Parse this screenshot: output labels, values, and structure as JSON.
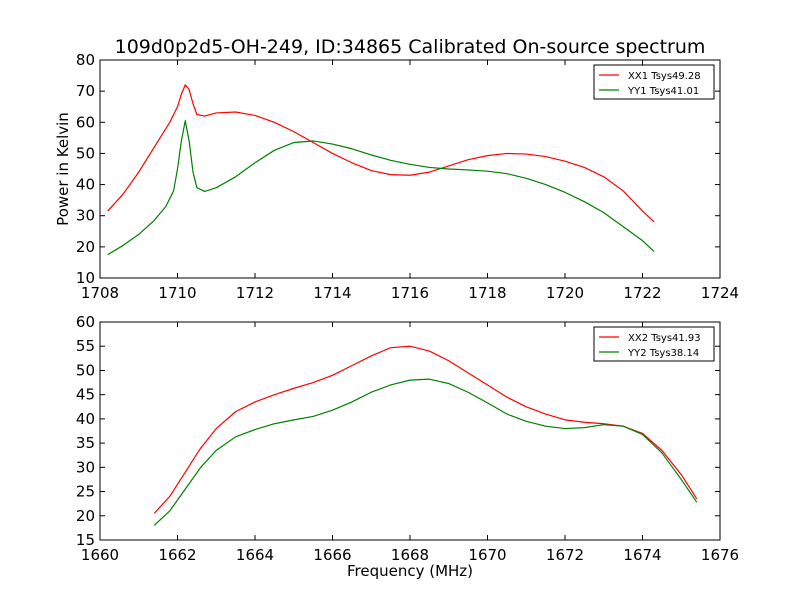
{
  "title": "109d0p2d5-OH-249, ID:34865 Calibrated On-source spectrum",
  "chart_data": [
    {
      "type": "line",
      "ylabel": "Power in Kelvin",
      "xlabel": "",
      "xlim": [
        1708,
        1724
      ],
      "ylim": [
        10,
        80
      ],
      "xticks": [
        1708,
        1710,
        1712,
        1714,
        1716,
        1718,
        1720,
        1722,
        1724
      ],
      "yticks": [
        10,
        20,
        30,
        40,
        50,
        60,
        70,
        80
      ],
      "legend_position": "top-right",
      "series": [
        {
          "name": "XX1 Tsys49.28",
          "color": "#ff0000",
          "points": [
            [
              1708.2,
              31.5
            ],
            [
              1708.6,
              37
            ],
            [
              1709.0,
              44
            ],
            [
              1709.4,
              52
            ],
            [
              1709.8,
              60
            ],
            [
              1710.0,
              65
            ],
            [
              1710.1,
              69
            ],
            [
              1710.2,
              72
            ],
            [
              1710.3,
              70.5
            ],
            [
              1710.4,
              66
            ],
            [
              1710.5,
              62.5
            ],
            [
              1710.7,
              62
            ],
            [
              1711.0,
              63
            ],
            [
              1711.5,
              63.3
            ],
            [
              1712.0,
              62.2
            ],
            [
              1712.5,
              60
            ],
            [
              1713.0,
              57
            ],
            [
              1713.5,
              53.5
            ],
            [
              1714.0,
              50
            ],
            [
              1714.5,
              47
            ],
            [
              1715.0,
              44.5
            ],
            [
              1715.5,
              43.2
            ],
            [
              1716.0,
              43
            ],
            [
              1716.5,
              44
            ],
            [
              1717.0,
              46
            ],
            [
              1717.5,
              48
            ],
            [
              1718.0,
              49.3
            ],
            [
              1718.5,
              50
            ],
            [
              1719.0,
              49.8
            ],
            [
              1719.5,
              49
            ],
            [
              1720.0,
              47.5
            ],
            [
              1720.5,
              45.5
            ],
            [
              1721.0,
              42.5
            ],
            [
              1721.5,
              38
            ],
            [
              1722.0,
              31.5
            ],
            [
              1722.3,
              28
            ]
          ]
        },
        {
          "name": "YY1 Tsys41.01",
          "color": "#008000",
          "points": [
            [
              1708.2,
              17.5
            ],
            [
              1708.6,
              20.5
            ],
            [
              1709.0,
              24
            ],
            [
              1709.4,
              28.5
            ],
            [
              1709.7,
              33
            ],
            [
              1709.9,
              38
            ],
            [
              1710.0,
              45
            ],
            [
              1710.1,
              54
            ],
            [
              1710.2,
              60.5
            ],
            [
              1710.3,
              54
            ],
            [
              1710.4,
              44
            ],
            [
              1710.5,
              39
            ],
            [
              1710.7,
              37.8
            ],
            [
              1711.0,
              39
            ],
            [
              1711.5,
              42.5
            ],
            [
              1712.0,
              47
            ],
            [
              1712.5,
              51
            ],
            [
              1713.0,
              53.5
            ],
            [
              1713.5,
              54
            ],
            [
              1714.0,
              53
            ],
            [
              1714.5,
              51.5
            ],
            [
              1715.0,
              49.5
            ],
            [
              1715.5,
              47.8
            ],
            [
              1716.0,
              46.5
            ],
            [
              1716.5,
              45.5
            ],
            [
              1717.0,
              45
            ],
            [
              1717.5,
              44.7
            ],
            [
              1718.0,
              44.3
            ],
            [
              1718.5,
              43.5
            ],
            [
              1719.0,
              42
            ],
            [
              1719.5,
              40
            ],
            [
              1720.0,
              37.5
            ],
            [
              1720.5,
              34.5
            ],
            [
              1721.0,
              31
            ],
            [
              1721.5,
              26.5
            ],
            [
              1722.0,
              22
            ],
            [
              1722.3,
              18.5
            ]
          ]
        }
      ]
    },
    {
      "type": "line",
      "ylabel": "",
      "xlabel": "Frequency (MHz)",
      "xlim": [
        1660,
        1676
      ],
      "ylim": [
        15,
        60
      ],
      "xticks": [
        1660,
        1662,
        1664,
        1666,
        1668,
        1670,
        1672,
        1674,
        1676
      ],
      "yticks": [
        15,
        20,
        25,
        30,
        35,
        40,
        45,
        50,
        55,
        60
      ],
      "legend_position": "top-right",
      "series": [
        {
          "name": "XX2 Tsys41.93",
          "color": "#ff0000",
          "points": [
            [
              1661.4,
              20.5
            ],
            [
              1661.8,
              24
            ],
            [
              1662.2,
              29
            ],
            [
              1662.6,
              34
            ],
            [
              1663.0,
              38
            ],
            [
              1663.5,
              41.5
            ],
            [
              1664.0,
              43.5
            ],
            [
              1664.5,
              45
            ],
            [
              1665.0,
              46.3
            ],
            [
              1665.5,
              47.5
            ],
            [
              1666.0,
              49
            ],
            [
              1666.5,
              51
            ],
            [
              1667.0,
              53
            ],
            [
              1667.5,
              54.7
            ],
            [
              1668.0,
              55
            ],
            [
              1668.5,
              54
            ],
            [
              1669.0,
              52
            ],
            [
              1669.5,
              49.5
            ],
            [
              1670.0,
              47
            ],
            [
              1670.5,
              44.5
            ],
            [
              1671.0,
              42.5
            ],
            [
              1671.5,
              41
            ],
            [
              1672.0,
              39.8
            ],
            [
              1672.5,
              39.3
            ],
            [
              1673.0,
              39
            ],
            [
              1673.5,
              38.5
            ],
            [
              1674.0,
              37
            ],
            [
              1674.5,
              33.5
            ],
            [
              1675.0,
              28.5
            ],
            [
              1675.4,
              23.5
            ]
          ]
        },
        {
          "name": "YY2 Tsys38.14",
          "color": "#008000",
          "points": [
            [
              1661.4,
              18
            ],
            [
              1661.8,
              21
            ],
            [
              1662.2,
              25.5
            ],
            [
              1662.6,
              30
            ],
            [
              1663.0,
              33.5
            ],
            [
              1663.5,
              36.3
            ],
            [
              1664.0,
              37.8
            ],
            [
              1664.5,
              39
            ],
            [
              1665.0,
              39.8
            ],
            [
              1665.5,
              40.5
            ],
            [
              1666.0,
              41.8
            ],
            [
              1666.5,
              43.5
            ],
            [
              1667.0,
              45.5
            ],
            [
              1667.5,
              47
            ],
            [
              1668.0,
              48
            ],
            [
              1668.5,
              48.2
            ],
            [
              1669.0,
              47.3
            ],
            [
              1669.5,
              45.5
            ],
            [
              1670.0,
              43.3
            ],
            [
              1670.5,
              41
            ],
            [
              1671.0,
              39.5
            ],
            [
              1671.5,
              38.5
            ],
            [
              1672.0,
              38
            ],
            [
              1672.5,
              38.2
            ],
            [
              1673.0,
              38.8
            ],
            [
              1673.5,
              38.5
            ],
            [
              1674.0,
              36.8
            ],
            [
              1674.5,
              33
            ],
            [
              1675.0,
              27.5
            ],
            [
              1675.4,
              22.8
            ]
          ]
        }
      ]
    }
  ]
}
